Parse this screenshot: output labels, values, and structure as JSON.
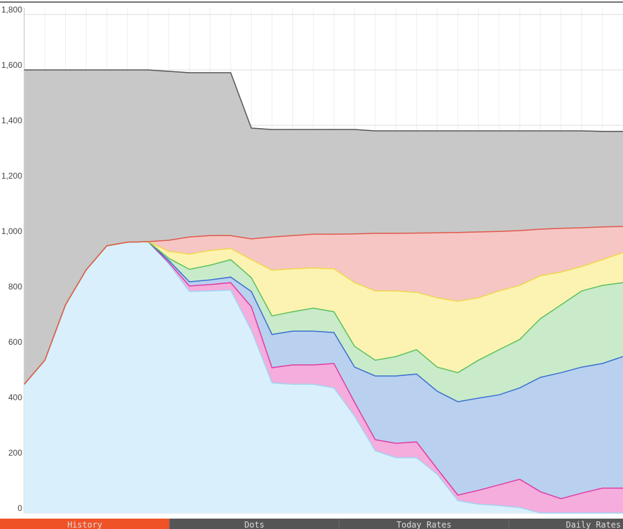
{
  "chart_data": {
    "type": "stacked_area",
    "categories": [
      null,
      null,
      null,
      null,
      null,
      null,
      null,
      null,
      null,
      null,
      null,
      null,
      null,
      null,
      null,
      null,
      null,
      null,
      null,
      null,
      null,
      null,
      null,
      null,
      null,
      null,
      null,
      null,
      null,
      null
    ],
    "series": [
      {
        "color": "#d9f0fc",
        "line_color": "#9fd6f2",
        "values": [
          465,
          552,
          752,
          878,
          965,
          978,
          980,
          900,
          800,
          802,
          805,
          660,
          470,
          465,
          465,
          452,
          350,
          225,
          200,
          200,
          140,
          45,
          32,
          27,
          20,
          0,
          0,
          0,
          0,
          0
        ]
      },
      {
        "color": "#f4addc",
        "line_color": "#e03ba3",
        "values": [
          0,
          0,
          0,
          0,
          0,
          0,
          0,
          5,
          20,
          23,
          27,
          85,
          55,
          70,
          70,
          88,
          50,
          40,
          52,
          57,
          20,
          20,
          50,
          75,
          102,
          77,
          52,
          72,
          90,
          90
        ]
      },
      {
        "color": "#b9d1ef",
        "line_color": "#3a6fd0",
        "values": [
          0,
          0,
          0,
          0,
          0,
          0,
          0,
          7,
          15,
          17,
          20,
          55,
          120,
          122,
          122,
          112,
          127,
          230,
          243,
          245,
          280,
          337,
          333,
          325,
          330,
          413,
          455,
          455,
          450,
          475
        ]
      },
      {
        "color": "#c9ebc9",
        "line_color": "#5cc05c",
        "values": [
          0,
          0,
          0,
          0,
          0,
          0,
          0,
          8,
          45,
          53,
          63,
          50,
          67,
          70,
          83,
          75,
          75,
          57,
          70,
          88,
          87,
          105,
          137,
          163,
          175,
          212,
          245,
          275,
          282,
          267
        ]
      },
      {
        "color": "#fcf3b2",
        "line_color": "#efd84c",
        "values": [
          0,
          0,
          0,
          0,
          0,
          0,
          0,
          25,
          55,
          53,
          40,
          65,
          165,
          155,
          145,
          155,
          230,
          250,
          237,
          207,
          250,
          258,
          225,
          212,
          195,
          155,
          118,
          88,
          93,
          108
        ]
      },
      {
        "color": "#f6c6c4",
        "line_color": "#e0584a",
        "values": [
          0,
          0,
          0,
          0,
          0,
          0,
          0,
          40,
          62,
          54,
          47,
          75,
          120,
          120,
          122,
          125,
          176,
          208,
          208,
          214,
          235,
          248,
          238,
          215,
          198,
          168,
          158,
          140,
          118,
          95
        ]
      },
      {
        "color": "#c8c8c8",
        "line_color": "#555555",
        "values": [
          1135,
          1048,
          848,
          722,
          635,
          622,
          620,
          610,
          593,
          588,
          588,
          400,
          388,
          383,
          378,
          378,
          377,
          370,
          370,
          369,
          368,
          367,
          365,
          363,
          360,
          355,
          352,
          350,
          345,
          343
        ]
      }
    ],
    "ylim": [
      0,
      1800
    ],
    "yticks": [
      0,
      200,
      400,
      600,
      800,
      {
        "value": 1000,
        "label": "1,000"
      },
      {
        "value": 1200,
        "label": "1,200"
      },
      {
        "value": 1400,
        "label": "1,400"
      },
      {
        "value": 1600,
        "label": "1,600"
      },
      {
        "value": 1800,
        "label": "1,800"
      }
    ],
    "grid": true
  },
  "nav": {
    "tabs": [
      "History",
      "Dots",
      "Today Rates",
      "Daily Rates"
    ],
    "active": 0
  }
}
